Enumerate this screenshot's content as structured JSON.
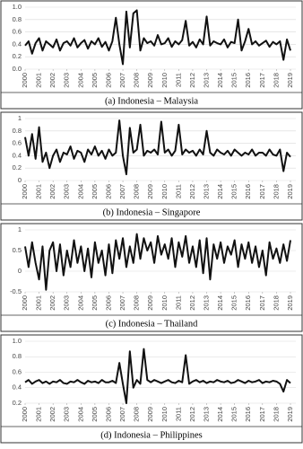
{
  "chart_data": [
    {
      "type": "line",
      "title": "(a) Indonesia – Malaysia",
      "color": "#111111",
      "grid": true,
      "xlim": [
        2000,
        2019
      ],
      "xticks": [
        2000,
        2001,
        2002,
        2003,
        2004,
        2005,
        2006,
        2007,
        2008,
        2009,
        2010,
        2011,
        2012,
        2013,
        2014,
        2015,
        2016,
        2017,
        2018,
        2019
      ],
      "ylim": [
        0,
        1
      ],
      "yticks": [
        {
          "value": 0,
          "label": "0.0"
        },
        0.2,
        0.4,
        0.6,
        0.8,
        {
          "value": 1,
          "label": "1.0"
        }
      ],
      "x": [
        2000,
        2000.25,
        2000.5,
        2000.75,
        2001,
        2001.25,
        2001.5,
        2001.75,
        2002,
        2002.25,
        2002.5,
        2002.75,
        2003,
        2003.25,
        2003.5,
        2003.75,
        2004,
        2004.25,
        2004.5,
        2004.75,
        2005,
        2005.25,
        2005.5,
        2005.75,
        2006,
        2006.25,
        2006.5,
        2006.75,
        2007,
        2007.25,
        2007.5,
        2007.75,
        2008,
        2008.25,
        2008.5,
        2008.75,
        2009,
        2009.25,
        2009.5,
        2009.75,
        2010,
        2010.25,
        2010.5,
        2010.75,
        2011,
        2011.25,
        2011.5,
        2011.75,
        2012,
        2012.25,
        2012.5,
        2012.75,
        2013,
        2013.25,
        2013.5,
        2013.75,
        2014,
        2014.25,
        2014.5,
        2014.75,
        2015,
        2015.25,
        2015.5,
        2015.75,
        2016,
        2016.25,
        2016.5,
        2016.75,
        2017,
        2017.25,
        2017.5,
        2017.75,
        2018,
        2018.25,
        2018.5,
        2018.75,
        2019
      ],
      "values": [
        0.38,
        0.45,
        0.25,
        0.42,
        0.5,
        0.3,
        0.45,
        0.4,
        0.35,
        0.48,
        0.3,
        0.42,
        0.45,
        0.38,
        0.5,
        0.35,
        0.42,
        0.47,
        0.33,
        0.45,
        0.4,
        0.5,
        0.36,
        0.44,
        0.3,
        0.45,
        0.83,
        0.4,
        0.08,
        0.93,
        0.35,
        0.9,
        0.95,
        0.3,
        0.5,
        0.42,
        0.45,
        0.38,
        0.55,
        0.4,
        0.42,
        0.5,
        0.36,
        0.45,
        0.4,
        0.47,
        0.78,
        0.38,
        0.44,
        0.35,
        0.48,
        0.4,
        0.85,
        0.38,
        0.45,
        0.42,
        0.4,
        0.48,
        0.35,
        0.44,
        0.42,
        0.8,
        0.3,
        0.45,
        0.65,
        0.4,
        0.45,
        0.38,
        0.42,
        0.46,
        0.36,
        0.44,
        0.4,
        0.45,
        0.15,
        0.48,
        0.3
      ]
    },
    {
      "type": "line",
      "title": "(b) Indonesia – Singapore",
      "color": "#111111",
      "grid": true,
      "xlim": [
        2000,
        2019
      ],
      "xticks": [
        2000,
        2001,
        2002,
        2003,
        2004,
        2005,
        2006,
        2007,
        2008,
        2009,
        2010,
        2011,
        2012,
        2013,
        2014,
        2015,
        2016,
        2017,
        2018,
        2019
      ],
      "ylim": [
        0,
        1
      ],
      "yticks": [
        0,
        0.2,
        0.4,
        0.6,
        0.8,
        1
      ],
      "x": [
        2000,
        2000.25,
        2000.5,
        2000.75,
        2001,
        2001.25,
        2001.5,
        2001.75,
        2002,
        2002.25,
        2002.5,
        2002.75,
        2003,
        2003.25,
        2003.5,
        2003.75,
        2004,
        2004.25,
        2004.5,
        2004.75,
        2005,
        2005.25,
        2005.5,
        2005.75,
        2006,
        2006.25,
        2006.5,
        2006.75,
        2007,
        2007.25,
        2007.5,
        2007.75,
        2008,
        2008.25,
        2008.5,
        2008.75,
        2009,
        2009.25,
        2009.5,
        2009.75,
        2010,
        2010.25,
        2010.5,
        2010.75,
        2011,
        2011.25,
        2011.5,
        2011.75,
        2012,
        2012.25,
        2012.5,
        2012.75,
        2013,
        2013.25,
        2013.5,
        2013.75,
        2014,
        2014.25,
        2014.5,
        2014.75,
        2015,
        2015.25,
        2015.5,
        2015.75,
        2016,
        2016.25,
        2016.5,
        2016.75,
        2017,
        2017.25,
        2017.5,
        2017.75,
        2018,
        2018.25,
        2018.5,
        2018.75,
        2019
      ],
      "values": [
        0.7,
        0.4,
        0.75,
        0.35,
        0.86,
        0.3,
        0.45,
        0.2,
        0.4,
        0.5,
        0.3,
        0.45,
        0.42,
        0.55,
        0.35,
        0.48,
        0.45,
        0.3,
        0.5,
        0.42,
        0.55,
        0.4,
        0.48,
        0.35,
        0.5,
        0.4,
        0.45,
        0.97,
        0.4,
        0.1,
        0.85,
        0.45,
        0.5,
        0.9,
        0.4,
        0.48,
        0.45,
        0.5,
        0.42,
        0.95,
        0.45,
        0.5,
        0.4,
        0.48,
        0.9,
        0.42,
        0.5,
        0.45,
        0.48,
        0.4,
        0.5,
        0.42,
        0.8,
        0.45,
        0.4,
        0.5,
        0.45,
        0.42,
        0.48,
        0.4,
        0.5,
        0.45,
        0.4,
        0.45,
        0.42,
        0.5,
        0.4,
        0.45,
        0.45,
        0.4,
        0.5,
        0.42,
        0.4,
        0.5,
        0.15,
        0.45,
        0.38
      ]
    },
    {
      "type": "line",
      "title": "(c) Indonesia – Thailand",
      "color": "#111111",
      "grid": true,
      "xlim": [
        2000,
        2019
      ],
      "xticks": [
        2000,
        2001,
        2002,
        2003,
        2004,
        2005,
        2006,
        2007,
        2008,
        2009,
        2010,
        2011,
        2012,
        2013,
        2014,
        2015,
        2016,
        2017,
        2018,
        2019
      ],
      "ylim": [
        -0.5,
        1
      ],
      "yticks": [
        -0.5,
        0,
        0.5,
        1
      ],
      "x": [
        2000,
        2000.25,
        2000.5,
        2000.75,
        2001,
        2001.25,
        2001.5,
        2001.75,
        2002,
        2002.25,
        2002.5,
        2002.75,
        2003,
        2003.25,
        2003.5,
        2003.75,
        2004,
        2004.25,
        2004.5,
        2004.75,
        2005,
        2005.25,
        2005.5,
        2005.75,
        2006,
        2006.25,
        2006.5,
        2006.75,
        2007,
        2007.25,
        2007.5,
        2007.75,
        2008,
        2008.25,
        2008.5,
        2008.75,
        2009,
        2009.25,
        2009.5,
        2009.75,
        2010,
        2010.25,
        2010.5,
        2010.75,
        2011,
        2011.25,
        2011.5,
        2011.75,
        2012,
        2012.25,
        2012.5,
        2012.75,
        2013,
        2013.25,
        2013.5,
        2013.75,
        2014,
        2014.25,
        2014.5,
        2014.75,
        2015,
        2015.25,
        2015.5,
        2015.75,
        2016,
        2016.25,
        2016.5,
        2016.75,
        2017,
        2017.25,
        2017.5,
        2017.75,
        2018,
        2018.25,
        2018.5,
        2018.75,
        2019
      ],
      "values": [
        0.6,
        0.1,
        0.7,
        0.2,
        -0.2,
        0.6,
        -0.45,
        0.5,
        0.7,
        0.0,
        0.65,
        -0.1,
        0.5,
        0.1,
        0.75,
        0.2,
        0.6,
        0.0,
        0.55,
        -0.15,
        0.7,
        0.2,
        0.5,
        -0.1,
        0.65,
        -0.05,
        0.75,
        0.3,
        0.8,
        0.1,
        0.6,
        0.2,
        0.9,
        0.3,
        0.8,
        0.5,
        0.7,
        0.2,
        0.85,
        0.4,
        0.65,
        0.3,
        0.8,
        0.1,
        0.7,
        0.35,
        0.85,
        0.2,
        0.6,
        0.1,
        0.75,
        -0.05,
        0.8,
        -0.2,
        0.65,
        0.3,
        0.7,
        0.2,
        0.6,
        0.4,
        0.75,
        0.1,
        0.65,
        0.3,
        0.7,
        0.2,
        0.6,
        0.1,
        0.5,
        -0.1,
        0.7,
        0.3,
        0.55,
        0.2,
        0.65,
        0.25,
        0.75
      ]
    },
    {
      "type": "line",
      "title": "(d) Indonesia – Philippines",
      "color": "#111111",
      "grid": true,
      "xlim": [
        2000,
        2019
      ],
      "xticks": [
        2000,
        2001,
        2002,
        2003,
        2004,
        2005,
        2006,
        2007,
        2008,
        2009,
        2010,
        2011,
        2012,
        2013,
        2014,
        2015,
        2016,
        2017,
        2018,
        2019
      ],
      "ylim": [
        0.2,
        1
      ],
      "yticks": [
        0.2,
        0.4,
        0.6,
        0.8,
        {
          "value": 1,
          "label": "1.0"
        }
      ],
      "x": [
        2000,
        2000.25,
        2000.5,
        2000.75,
        2001,
        2001.25,
        2001.5,
        2001.75,
        2002,
        2002.25,
        2002.5,
        2002.75,
        2003,
        2003.25,
        2003.5,
        2003.75,
        2004,
        2004.25,
        2004.5,
        2004.75,
        2005,
        2005.25,
        2005.5,
        2005.75,
        2006,
        2006.25,
        2006.5,
        2006.75,
        2007,
        2007.25,
        2007.5,
        2007.75,
        2008,
        2008.25,
        2008.5,
        2008.75,
        2009,
        2009.25,
        2009.5,
        2009.75,
        2010,
        2010.25,
        2010.5,
        2010.75,
        2011,
        2011.25,
        2011.5,
        2011.75,
        2012,
        2012.25,
        2012.5,
        2012.75,
        2013,
        2013.25,
        2013.5,
        2013.75,
        2014,
        2014.25,
        2014.5,
        2014.75,
        2015,
        2015.25,
        2015.5,
        2015.75,
        2016,
        2016.25,
        2016.5,
        2016.75,
        2017,
        2017.25,
        2017.5,
        2017.75,
        2018,
        2018.25,
        2018.5,
        2018.75,
        2019
      ],
      "values": [
        0.47,
        0.5,
        0.45,
        0.48,
        0.5,
        0.46,
        0.48,
        0.45,
        0.48,
        0.47,
        0.5,
        0.46,
        0.45,
        0.48,
        0.47,
        0.5,
        0.47,
        0.45,
        0.49,
        0.47,
        0.48,
        0.46,
        0.5,
        0.47,
        0.47,
        0.49,
        0.46,
        0.72,
        0.45,
        0.2,
        0.87,
        0.4,
        0.5,
        0.45,
        0.9,
        0.5,
        0.47,
        0.5,
        0.48,
        0.46,
        0.48,
        0.5,
        0.47,
        0.46,
        0.49,
        0.47,
        0.82,
        0.45,
        0.48,
        0.5,
        0.47,
        0.49,
        0.46,
        0.48,
        0.47,
        0.5,
        0.48,
        0.47,
        0.49,
        0.46,
        0.47,
        0.5,
        0.48,
        0.46,
        0.49,
        0.47,
        0.48,
        0.5,
        0.46,
        0.48,
        0.47,
        0.49,
        0.48,
        0.45,
        0.35,
        0.5,
        0.46
      ]
    }
  ]
}
